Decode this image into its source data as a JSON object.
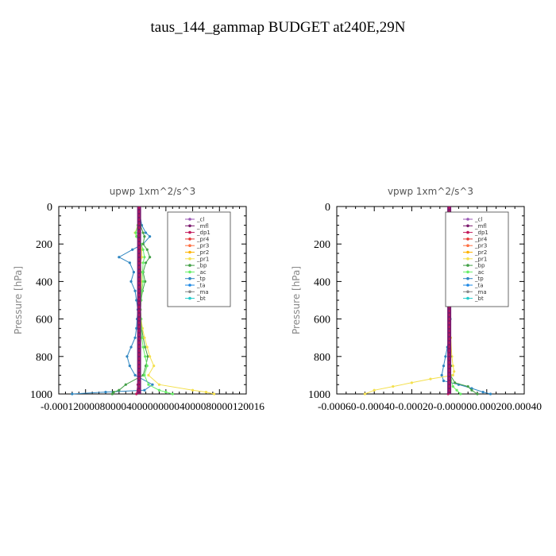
{
  "page_title": "taus_144_gammap  BUDGET at240E,29N",
  "legend_names": [
    "_cl",
    "_mfl",
    "_dp1",
    "_pr4",
    "_pr3",
    "_pr2",
    "_pr1",
    "_bp",
    "_ac",
    "_tp",
    "_ta",
    "_ma",
    "_bt"
  ],
  "legend_colors": [
    "#9b59b6",
    "#7b1a6e",
    "#c2185b",
    "#e53935",
    "#ff7043",
    "#ffb300",
    "#f4e04d",
    "#43a047",
    "#66ee66",
    "#2e86c1",
    "#1e88e5",
    "#888888",
    "#22cccc"
  ],
  "chart_data": [
    {
      "type": "line",
      "title": "upwp   1xm^2/s^3",
      "ylabel": "Pressure [hPa]",
      "xlim": [
        -0.00012,
        0.00016
      ],
      "ylim": [
        1000,
        0
      ],
      "ytick_labels": [
        "0",
        "200",
        "400",
        "600",
        "800",
        "1000"
      ],
      "xtick_labels": [
        "-0.00012",
        "-0.00008",
        "-0.00004",
        "0.00000",
        "0.00004",
        "0.00008",
        "0.00012",
        "0.00016"
      ],
      "xtick_text": "-0.0001200008000040000000004000080000120016",
      "legend_position": "top-right",
      "series": [
        {
          "name": "_tp",
          "y": [
            20,
            100,
            140,
            160,
            200,
            230,
            270,
            300,
            350,
            400,
            450,
            500,
            550,
            600,
            650,
            700,
            750,
            800,
            850,
            900,
            950,
            980,
            990,
            1000
          ],
          "x": [
            0,
            4e-06,
            1e-05,
            1.6e-05,
            6e-06,
            -1e-05,
            -3e-05,
            -1.4e-05,
            -8e-06,
            -1.2e-05,
            -6e-06,
            -4e-06,
            -2e-06,
            -3e-06,
            -4e-06,
            -6e-06,
            -1.2e-05,
            -1.8e-05,
            -1.4e-05,
            -6e-06,
            2e-05,
            8e-06,
            -5e-05,
            -0.0001
          ]
        },
        {
          "name": "_bp",
          "y": [
            20,
            100,
            140,
            160,
            200,
            230,
            270,
            300,
            350,
            400,
            450,
            500,
            550,
            600,
            650,
            700,
            750,
            800,
            850,
            900,
            950,
            980,
            990,
            1000
          ],
          "x": [
            0,
            2e-06,
            6e-06,
            8e-06,
            6e-06,
            1.2e-05,
            1.6e-05,
            1e-05,
            6e-06,
            9e-06,
            5e-06,
            3e-06,
            2e-06,
            3e-06,
            4e-06,
            6e-06,
            9e-06,
            1.3e-05,
            1e-05,
            6e-06,
            -2e-05,
            -3e-05,
            -3.8e-05,
            -4e-05
          ]
        },
        {
          "name": "_pr1",
          "y": [
            20,
            100,
            140,
            160,
            200,
            230,
            270,
            300,
            350,
            400,
            450,
            500,
            550,
            600,
            650,
            700,
            750,
            800,
            850,
            900,
            950,
            980,
            990,
            1000
          ],
          "x": [
            0,
            -2e-06,
            -6e-06,
            -4e-06,
            2e-06,
            4e-06,
            4e-06,
            2e-06,
            3e-06,
            4e-06,
            3e-06,
            2e-06,
            2e-06,
            3e-06,
            5e-06,
            8e-06,
            1.2e-05,
            1.6e-05,
            2.2e-05,
            1.4e-05,
            3e-05,
            8e-05,
            0.0001,
            0.000112
          ]
        },
        {
          "name": "_ac",
          "y": [
            20,
            100,
            140,
            160,
            200,
            230,
            270,
            300,
            350,
            400,
            450,
            500,
            550,
            600,
            650,
            700,
            750,
            800,
            850,
            900,
            950,
            980,
            990,
            1000
          ],
          "x": [
            0,
            -2e-06,
            -5e-06,
            -4e-06,
            3e-06,
            6e-06,
            8e-06,
            6e-06,
            5e-06,
            6e-06,
            4e-06,
            3e-06,
            2e-06,
            3e-06,
            3e-06,
            4e-06,
            6e-06,
            9e-06,
            1.2e-05,
            8e-06,
            1.4e-05,
            3e-05,
            4e-05,
            5e-05
          ]
        },
        {
          "name": "_dp1",
          "y": [
            20,
            100,
            200,
            300,
            400,
            500,
            600,
            700,
            800,
            900,
            950,
            1000
          ],
          "x": [
            0,
            0,
            0,
            0,
            0,
            0,
            0,
            0,
            0,
            0,
            -2e-06,
            -4e-06
          ]
        }
      ]
    },
    {
      "type": "line",
      "title": "vpwp   1xm^2/s^3",
      "ylabel": "Pressure [hPa]",
      "xlim": [
        -0.0006,
        0.0004
      ],
      "ylim": [
        1000,
        0
      ],
      "ytick_labels": [
        "0",
        "200",
        "400",
        "600",
        "800",
        "1000"
      ],
      "xtick_labels": [
        "-0.00060",
        "-0.00040",
        "-0.00020",
        "0.00000",
        "0.00020",
        "0.00040"
      ],
      "xtick_text": "-0.00060-0.00040-0.00020-0.000000.000200.00040",
      "legend_position": "top-right",
      "series": [
        {
          "name": "_tp",
          "y": [
            20,
            200,
            400,
            600,
            700,
            750,
            800,
            850,
            900,
            930,
            950,
            970,
            990,
            1000
          ],
          "x": [
            0,
            2e-06,
            4e-06,
            6e-06,
            0,
            -1e-05,
            -2e-05,
            -3e-05,
            -4e-05,
            -3e-05,
            5e-05,
            0.00012,
            0.00018,
            0.00022
          ]
        },
        {
          "name": "_pr1",
          "y": [
            20,
            200,
            400,
            600,
            700,
            800,
            850,
            880,
            900,
            920,
            940,
            960,
            980,
            1000
          ],
          "x": [
            0,
            0,
            2e-06,
            4e-06,
            8e-06,
            1.4e-05,
            2e-05,
            2.6e-05,
            2e-05,
            -0.0001,
            -0.0002,
            -0.0003,
            -0.0004,
            -0.00045
          ]
        },
        {
          "name": "_bp",
          "y": [
            20,
            200,
            400,
            600,
            700,
            800,
            850,
            900,
            940,
            960,
            980,
            1000
          ],
          "x": [
            0,
            0,
            0,
            2e-06,
            4e-06,
            6e-06,
            8e-06,
            6e-06,
            3e-05,
            0.0001,
            0.00012,
            0.00015
          ]
        },
        {
          "name": "_ac",
          "y": [
            20,
            400,
            800,
            900,
            960,
            980,
            1000
          ],
          "x": [
            0,
            0,
            4e-06,
            6e-06,
            2e-05,
            4e-05,
            6e-05
          ]
        },
        {
          "name": "_dp1",
          "y": [
            20,
            200,
            400,
            600,
            800,
            900,
            1000
          ],
          "x": [
            0,
            0,
            0,
            0,
            0,
            0,
            -6e-06
          ]
        }
      ]
    }
  ]
}
